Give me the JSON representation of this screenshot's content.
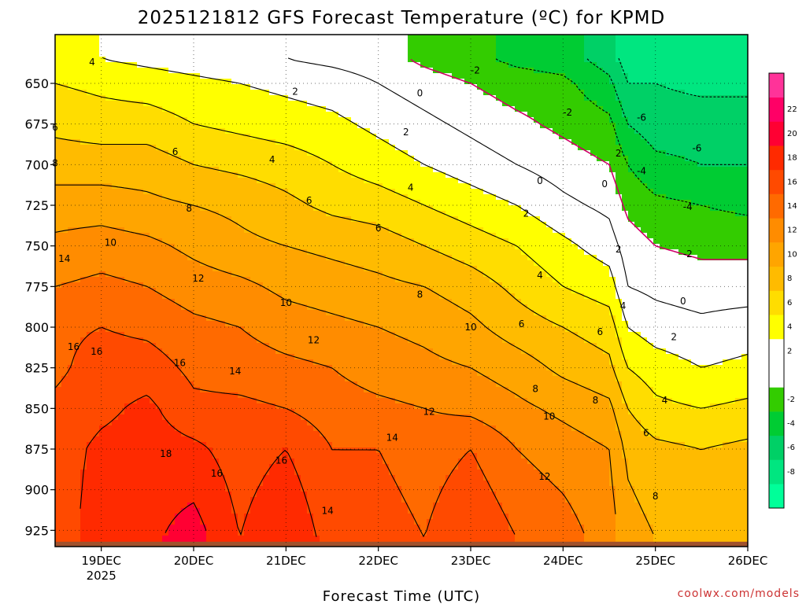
{
  "title": "2025121812 GFS Forecast Temperature (ºC) for KPMD",
  "footer": {
    "xlabel": "Forecast Time (UTC)",
    "credit": "coolwx.com/models",
    "credit_color": "#cc3333"
  },
  "chart_data": {
    "type": "heatmap",
    "title": "2025121812 GFS Forecast Temperature (ºC) for KPMD",
    "xlabel": "Forecast Time (UTC)",
    "ylabel": "",
    "y_axis": {
      "label": "",
      "ticks": [
        650,
        675,
        700,
        725,
        750,
        775,
        800,
        825,
        850,
        875,
        900,
        925
      ],
      "range_hPa": [
        620,
        935
      ],
      "inverted": true
    },
    "x_axis": {
      "ticks": [
        {
          "label": "19DEC",
          "sublabel": "2025",
          "day": 19
        },
        {
          "label": "20DEC",
          "sublabel": "",
          "day": 20
        },
        {
          "label": "21DEC",
          "sublabel": "",
          "day": 21
        },
        {
          "label": "22DEC",
          "sublabel": "",
          "day": 22
        },
        {
          "label": "23DEC",
          "sublabel": "",
          "day": 23
        },
        {
          "label": "24DEC",
          "sublabel": "",
          "day": 24
        },
        {
          "label": "25DEC",
          "sublabel": "",
          "day": 25
        },
        {
          "label": "26DEC",
          "sublabel": "",
          "day": 26
        }
      ],
      "range_days": [
        18.5,
        26.0
      ]
    },
    "grid": true,
    "grid_style": "dotted",
    "colorbar": {
      "levels": [
        -10,
        -8,
        -6,
        -4,
        -2,
        0,
        2,
        4,
        6,
        8,
        10,
        12,
        14,
        16,
        18,
        20,
        22,
        24
      ],
      "colors": [
        "#00ff99",
        "#00e680",
        "#00d066",
        "#00cc33",
        "#33cc00",
        "#ffffff",
        "#ffffff",
        "#ffff00",
        "#ffdd00",
        "#ffbb00",
        "#ffa500",
        "#ff8c00",
        "#ff6a00",
        "#ff4a00",
        "#ff2a00",
        "#ff0033",
        "#ff0066",
        "#ff3399"
      ],
      "tick_labels": [
        "-8",
        "-6",
        "-4",
        "-2",
        "2",
        "4",
        "6",
        "8",
        "10",
        "12",
        "14",
        "16",
        "18",
        "20",
        "22"
      ]
    },
    "contour_interval": 2,
    "zero_line_color": "#cc0066",
    "ground_color": "#a0522d",
    "ground_pressure_hPa": 932,
    "series": [
      {
        "day": 18.5,
        "t": [
          5,
          6,
          7.5,
          9,
          11,
          12.5,
          14,
          15.5,
          15.5,
          16.5,
          17,
          17
        ]
      },
      {
        "day": 19.0,
        "t": [
          4,
          5.5,
          7,
          9,
          11,
          13,
          14.5,
          16,
          17,
          17.5,
          18.5,
          19
        ]
      },
      {
        "day": 19.5,
        "t": [
          3.5,
          5,
          7,
          9,
          10.5,
          12.5,
          14,
          15.5,
          17,
          18.5,
          19,
          19.5
        ]
      },
      {
        "day": 20.0,
        "t": [
          3,
          4.5,
          6,
          8,
          10,
          11.5,
          13,
          14.5,
          15.5,
          16.5,
          18.5,
          21
        ]
      },
      {
        "day": 20.5,
        "t": [
          2.5,
          4,
          5.5,
          7.5,
          9.5,
          10.5,
          12.5,
          14,
          15,
          16.5,
          17,
          18
        ]
      },
      {
        "day": 21.0,
        "t": [
          2,
          3.5,
          5,
          7,
          8.5,
          10,
          11.5,
          13,
          14.5,
          16,
          18,
          20
        ]
      },
      {
        "day": 21.5,
        "t": [
          1.5,
          3,
          4.5,
          6,
          7.5,
          9.5,
          11,
          12.5,
          14,
          15,
          16,
          17
        ]
      },
      {
        "day": 22.0,
        "t": [
          1,
          2,
          3.5,
          5,
          7,
          9,
          10.5,
          12,
          13,
          14.5,
          16,
          17
        ]
      },
      {
        "day": 22.5,
        "t": [
          -0.5,
          1,
          2.5,
          4,
          6,
          8,
          10,
          11.5,
          12.5,
          14,
          15,
          16
        ]
      },
      {
        "day": 23.0,
        "t": [
          -1.5,
          0,
          1.5,
          3,
          5,
          7,
          9,
          10.5,
          12,
          13.5,
          16,
          18
        ]
      },
      {
        "day": 23.5,
        "t": [
          -2.5,
          -1,
          0.5,
          2,
          4,
          6,
          7.5,
          9,
          11,
          12.5,
          14,
          16
        ]
      },
      {
        "day": 24.0,
        "t": [
          -3,
          -1.5,
          -0.5,
          1,
          2.5,
          4.5,
          6,
          8,
          9.5,
          11.5,
          13,
          15
        ]
      },
      {
        "day": 24.5,
        "t": [
          -5,
          -3.5,
          -1.5,
          0,
          1.5,
          3,
          5,
          7,
          8.5,
          10.5,
          12,
          13
        ]
      },
      {
        "day": 24.7,
        "t": [
          -7,
          -6,
          -4,
          -2,
          -0.5,
          1,
          2,
          4,
          6,
          8,
          9.5,
          11
        ]
      },
      {
        "day": 25.0,
        "t": [
          -7,
          -6,
          -5,
          -3.5,
          -1.5,
          0,
          1.5,
          3,
          5,
          6.5,
          8.5,
          10
        ]
      },
      {
        "day": 25.5,
        "t": [
          -7.5,
          -6.5,
          -5,
          -4,
          -2,
          -0.5,
          1,
          2.5,
          4,
          6,
          8,
          9.5
        ]
      },
      {
        "day": 26.0,
        "t": [
          -7.5,
          -6.5,
          -5,
          -4,
          -2.5,
          -0.5,
          1,
          3,
          4.5,
          6.5,
          8.5,
          10
        ]
      }
    ],
    "pressure_levels": [
      635,
      650,
      675,
      700,
      725,
      750,
      775,
      800,
      825,
      850,
      875,
      930
    ],
    "contour_labels": [
      {
        "text": "4",
        "day": 18.9,
        "p": 637
      },
      {
        "text": "2",
        "day": 21.1,
        "p": 655
      },
      {
        "text": "0",
        "day": 22.45,
        "p": 656
      },
      {
        "text": "-2",
        "day": 23.05,
        "p": 642
      },
      {
        "text": "2",
        "day": 22.3,
        "p": 680
      },
      {
        "text": "6",
        "day": 18.5,
        "p": 677
      },
      {
        "text": "6",
        "day": 19.8,
        "p": 692
      },
      {
        "text": "4",
        "day": 20.85,
        "p": 697
      },
      {
        "text": "8",
        "day": 18.5,
        "p": 699
      },
      {
        "text": "-2",
        "day": 24.05,
        "p": 668
      },
      {
        "text": "-6",
        "day": 24.85,
        "p": 671
      },
      {
        "text": "-6",
        "day": 25.45,
        "p": 690
      },
      {
        "text": "2",
        "day": 24.6,
        "p": 693
      },
      {
        "text": "-4",
        "day": 24.85,
        "p": 704
      },
      {
        "text": "0",
        "day": 23.75,
        "p": 710
      },
      {
        "text": "0",
        "day": 24.45,
        "p": 712
      },
      {
        "text": "4",
        "day": 22.35,
        "p": 714
      },
      {
        "text": "8",
        "day": 19.95,
        "p": 727
      },
      {
        "text": "6",
        "day": 21.25,
        "p": 722
      },
      {
        "text": "-4",
        "day": 25.35,
        "p": 726
      },
      {
        "text": "2",
        "day": 23.6,
        "p": 730
      },
      {
        "text": "10",
        "day": 19.1,
        "p": 748
      },
      {
        "text": "6",
        "day": 22.0,
        "p": 739
      },
      {
        "text": "12",
        "day": 20.05,
        "p": 770
      },
      {
        "text": "-2",
        "day": 25.35,
        "p": 755
      },
      {
        "text": "2",
        "day": 24.6,
        "p": 752
      },
      {
        "text": "4",
        "day": 23.75,
        "p": 768
      },
      {
        "text": "14",
        "day": 18.6,
        "p": 758
      },
      {
        "text": "8",
        "day": 22.45,
        "p": 780
      },
      {
        "text": "0",
        "day": 25.3,
        "p": 784
      },
      {
        "text": "10",
        "day": 21.0,
        "p": 785
      },
      {
        "text": "4",
        "day": 24.65,
        "p": 787
      },
      {
        "text": "6",
        "day": 23.55,
        "p": 798
      },
      {
        "text": "16",
        "day": 18.7,
        "p": 812
      },
      {
        "text": "16",
        "day": 18.95,
        "p": 815
      },
      {
        "text": "12",
        "day": 21.3,
        "p": 808
      },
      {
        "text": "10",
        "day": 23.0,
        "p": 800
      },
      {
        "text": "2",
        "day": 25.2,
        "p": 806
      },
      {
        "text": "6",
        "day": 24.4,
        "p": 803
      },
      {
        "text": "16",
        "day": 19.85,
        "p": 822
      },
      {
        "text": "14",
        "day": 20.45,
        "p": 827
      },
      {
        "text": "8",
        "day": 23.7,
        "p": 838
      },
      {
        "text": "8",
        "day": 24.35,
        "p": 845
      },
      {
        "text": "4",
        "day": 25.1,
        "p": 845
      },
      {
        "text": "12",
        "day": 22.55,
        "p": 852
      },
      {
        "text": "10",
        "day": 23.85,
        "p": 855
      },
      {
        "text": "6",
        "day": 24.9,
        "p": 865
      },
      {
        "text": "18",
        "day": 19.7,
        "p": 878
      },
      {
        "text": "14",
        "day": 22.15,
        "p": 868
      },
      {
        "text": "16",
        "day": 20.95,
        "p": 882
      },
      {
        "text": "16",
        "day": 20.25,
        "p": 890
      },
      {
        "text": "12",
        "day": 23.8,
        "p": 892
      },
      {
        "text": "8",
        "day": 25.0,
        "p": 904
      },
      {
        "text": "14",
        "day": 21.45,
        "p": 913
      }
    ]
  }
}
